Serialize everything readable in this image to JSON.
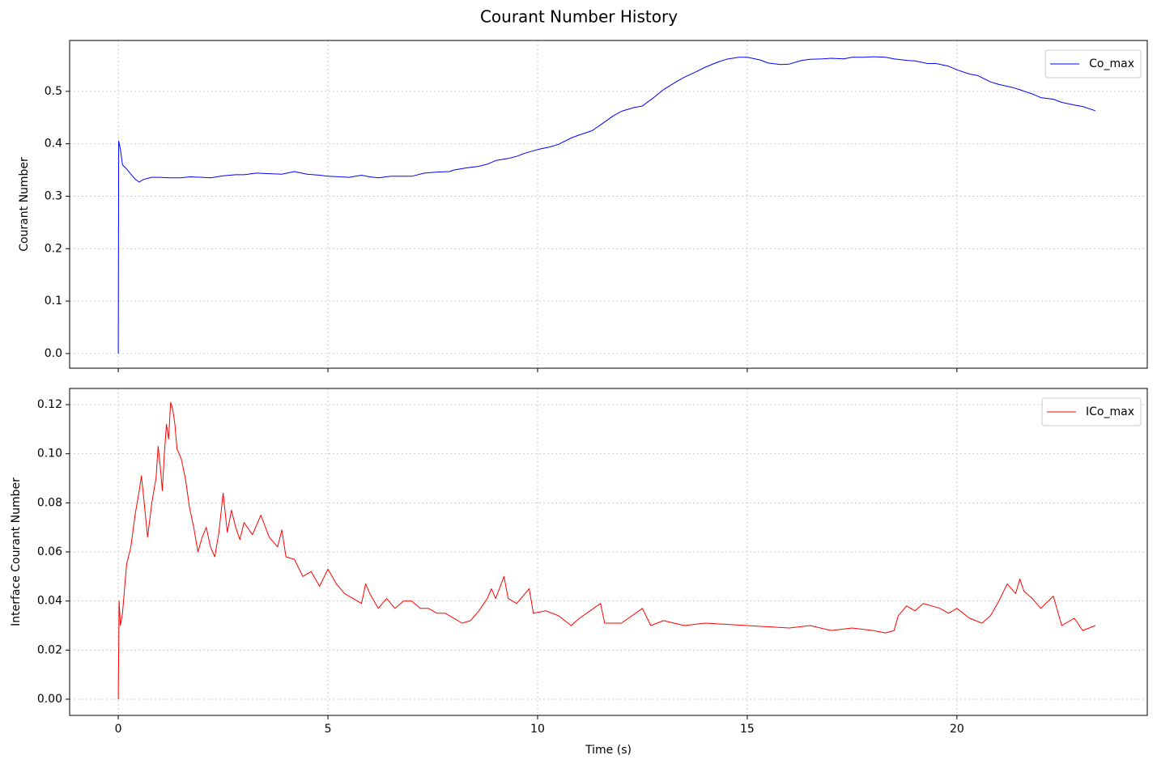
{
  "title": "Courant Number History",
  "chart_data": [
    {
      "type": "line",
      "ylabel": "Courant Number",
      "xlim": [
        -1.16,
        24.54
      ],
      "ylim": [
        -0.028,
        0.597
      ],
      "xticks": [
        0,
        5,
        10,
        15,
        20
      ],
      "yticks": [
        {
          "value": 0,
          "label": "0.0"
        },
        0.1,
        0.2,
        0.3,
        0.4,
        0.5
      ],
      "grid": true,
      "legend": "upper-right",
      "x": [
        0,
        0.01,
        0.05,
        0.1,
        0.2,
        0.3,
        0.4,
        0.5,
        0.6,
        0.8,
        1.0,
        1.2,
        1.5,
        1.7,
        2.0,
        2.2,
        2.5,
        2.8,
        3.0,
        3.3,
        3.6,
        3.9,
        4.2,
        4.5,
        4.8,
        5.0,
        5.3,
        5.5,
        5.8,
        6.0,
        6.2,
        6.5,
        6.8,
        7.0,
        7.3,
        7.6,
        7.9,
        8.0,
        8.3,
        8.6,
        8.8,
        9.0,
        9.3,
        9.5,
        9.7,
        10.0,
        10.3,
        10.5,
        10.8,
        11.0,
        11.3,
        11.5,
        11.8,
        12.0,
        12.3,
        12.5,
        12.8,
        13.0,
        13.3,
        13.5,
        13.8,
        14.0,
        14.3,
        14.5,
        14.8,
        15.0,
        15.3,
        15.5,
        15.8,
        16.0,
        16.3,
        16.5,
        16.8,
        17.0,
        17.3,
        17.5,
        17.8,
        18.0,
        18.3,
        18.5,
        18.8,
        19.0,
        19.3,
        19.5,
        19.8,
        20.0,
        20.3,
        20.5,
        20.8,
        21.0,
        21.3,
        21.5,
        21.8,
        22.0,
        22.3,
        22.5,
        22.8,
        23.0,
        23.3
      ],
      "series": [
        {
          "name": "Co_max",
          "color": "#0000ff",
          "values": [
            0,
            0.405,
            0.39,
            0.36,
            0.352,
            0.342,
            0.333,
            0.327,
            0.332,
            0.336,
            0.336,
            0.335,
            0.335,
            0.337,
            0.336,
            0.335,
            0.339,
            0.341,
            0.341,
            0.344,
            0.343,
            0.342,
            0.347,
            0.342,
            0.34,
            0.338,
            0.337,
            0.336,
            0.34,
            0.337,
            0.335,
            0.338,
            0.338,
            0.338,
            0.344,
            0.346,
            0.347,
            0.35,
            0.354,
            0.357,
            0.361,
            0.368,
            0.372,
            0.376,
            0.382,
            0.389,
            0.394,
            0.399,
            0.411,
            0.417,
            0.425,
            0.436,
            0.453,
            0.462,
            0.469,
            0.472,
            0.49,
            0.503,
            0.518,
            0.527,
            0.538,
            0.546,
            0.556,
            0.561,
            0.565,
            0.565,
            0.56,
            0.554,
            0.551,
            0.552,
            0.559,
            0.561,
            0.562,
            0.563,
            0.562,
            0.565,
            0.565,
            0.566,
            0.565,
            0.562,
            0.559,
            0.558,
            0.553,
            0.553,
            0.548,
            0.541,
            0.533,
            0.53,
            0.518,
            0.513,
            0.508,
            0.503,
            0.495,
            0.488,
            0.485,
            0.479,
            0.474,
            0.471,
            0.463
          ]
        }
      ]
    },
    {
      "type": "line",
      "xlabel": "Time (s)",
      "ylabel": "Interface Courant Number",
      "xlim": [
        -1.16,
        24.54
      ],
      "ylim": [
        -0.0066,
        0.1266
      ],
      "xticks": [
        0,
        5,
        10,
        15,
        20
      ],
      "yticks": [
        {
          "value": 0,
          "label": "0.00"
        },
        0.02,
        0.04,
        0.06,
        0.08,
        {
          "value": 0.1,
          "label": "0.10"
        },
        0.12
      ],
      "grid": true,
      "legend": "upper-right",
      "x": [
        0,
        0.02,
        0.05,
        0.1,
        0.15,
        0.2,
        0.3,
        0.4,
        0.5,
        0.55,
        0.6,
        0.7,
        0.8,
        0.9,
        0.95,
        1.0,
        1.05,
        1.1,
        1.15,
        1.2,
        1.25,
        1.3,
        1.35,
        1.4,
        1.5,
        1.6,
        1.7,
        1.8,
        1.9,
        2.0,
        2.1,
        2.2,
        2.3,
        2.4,
        2.5,
        2.6,
        2.7,
        2.8,
        2.9,
        3.0,
        3.2,
        3.4,
        3.6,
        3.8,
        3.9,
        4.0,
        4.2,
        4.4,
        4.6,
        4.8,
        5.0,
        5.2,
        5.4,
        5.6,
        5.8,
        5.9,
        6.0,
        6.2,
        6.4,
        6.6,
        6.8,
        7.0,
        7.2,
        7.4,
        7.6,
        7.8,
        8.0,
        8.2,
        8.4,
        8.6,
        8.8,
        8.9,
        9.0,
        9.2,
        9.3,
        9.5,
        9.8,
        9.9,
        10.2,
        10.5,
        10.8,
        11.0,
        11.5,
        11.6,
        12.0,
        12.5,
        12.7,
        13.0,
        13.5,
        14.0,
        15.0,
        16.0,
        16.5,
        17.0,
        17.5,
        18.0,
        18.3,
        18.5,
        18.6,
        18.8,
        19.0,
        19.2,
        19.4,
        19.6,
        19.8,
        20.0,
        20.3,
        20.6,
        20.8,
        21.0,
        21.2,
        21.4,
        21.5,
        21.6,
        21.8,
        22.0,
        22.3,
        22.5,
        22.8,
        23.0,
        23.3
      ],
      "series": [
        {
          "name": "ICo_max",
          "color": "#ff0000",
          "values": [
            0,
            0.04,
            0.03,
            0.035,
            0.045,
            0.055,
            0.062,
            0.075,
            0.085,
            0.091,
            0.083,
            0.066,
            0.08,
            0.09,
            0.103,
            0.095,
            0.085,
            0.1,
            0.112,
            0.106,
            0.121,
            0.118,
            0.112,
            0.102,
            0.098,
            0.09,
            0.078,
            0.07,
            0.06,
            0.066,
            0.07,
            0.062,
            0.058,
            0.068,
            0.084,
            0.068,
            0.077,
            0.07,
            0.065,
            0.072,
            0.067,
            0.075,
            0.066,
            0.062,
            0.069,
            0.058,
            0.057,
            0.05,
            0.052,
            0.046,
            0.053,
            0.047,
            0.043,
            0.041,
            0.039,
            0.047,
            0.043,
            0.037,
            0.041,
            0.037,
            0.04,
            0.04,
            0.037,
            0.037,
            0.035,
            0.035,
            0.033,
            0.031,
            0.032,
            0.036,
            0.041,
            0.045,
            0.041,
            0.05,
            0.041,
            0.039,
            0.045,
            0.035,
            0.036,
            0.034,
            0.03,
            0.033,
            0.039,
            0.031,
            0.031,
            0.037,
            0.03,
            0.032,
            0.03,
            0.031,
            0.03,
            0.029,
            0.03,
            0.028,
            0.029,
            0.028,
            0.027,
            0.028,
            0.034,
            0.038,
            0.036,
            0.039,
            0.038,
            0.037,
            0.035,
            0.037,
            0.033,
            0.031,
            0.034,
            0.04,
            0.047,
            0.043,
            0.049,
            0.044,
            0.041,
            0.037,
            0.042,
            0.03,
            0.033,
            0.028,
            0.03
          ]
        }
      ]
    }
  ]
}
